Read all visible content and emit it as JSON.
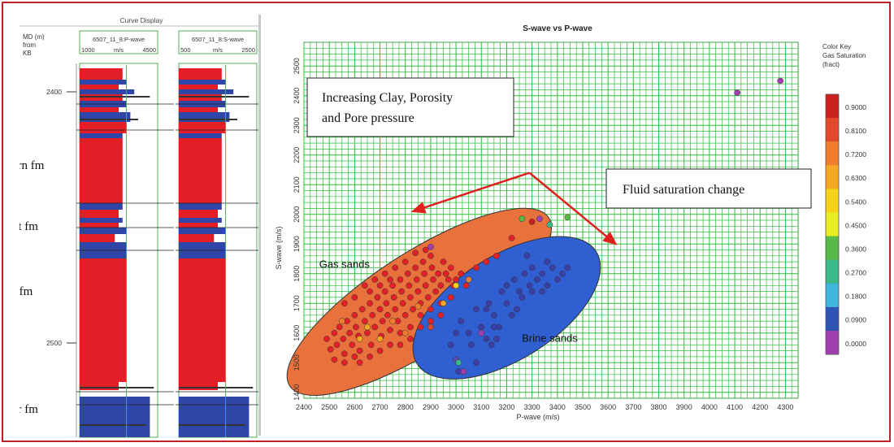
{
  "frame_color": "#c0202a",
  "well_panel": {
    "title": "Curve Display",
    "depth_header": [
      "MD (m)",
      "from",
      "KB"
    ],
    "depth_ticks": [
      "2400",
      "2500"
    ],
    "tracks": [
      {
        "name": "6507_11_8:P-wave",
        "min": "1000",
        "unit": "m/s",
        "max": "4500"
      },
      {
        "name": "6507_11_8:S-wave",
        "min": "500",
        "unit": "m/s",
        "max": "2500"
      }
    ],
    "formations": [
      "Garn fm",
      "Not fm",
      "Ile fm",
      "Ror fm"
    ],
    "colors": {
      "high": "#e41e26",
      "low": "#2f45a8",
      "track_border": "#4caf50"
    }
  },
  "chart_data": {
    "type": "scatter",
    "title": "S-wave vs P-wave",
    "xlabel": "P-wave (m/s)",
    "ylabel": "S-wave (m/s)",
    "xlim": [
      2400,
      4350
    ],
    "ylim": [
      1380,
      2580
    ],
    "xticks": [
      2400,
      2500,
      2600,
      2700,
      2800,
      2900,
      3000,
      3100,
      3200,
      3300,
      3400,
      3500,
      3600,
      3700,
      3800,
      3900,
      4000,
      4100,
      4200,
      4300
    ],
    "yticks": [
      1400,
      1500,
      1600,
      1700,
      1800,
      1900,
      2000,
      2100,
      2200,
      2300,
      2400,
      2500
    ],
    "grid": true,
    "grid_color": "#2fbf3a",
    "color_key": {
      "title": [
        "Color Key",
        "Gas Saturation",
        "(fract)"
      ],
      "labels": [
        "0.9000",
        "0.8100",
        "0.7200",
        "0.6300",
        "0.5400",
        "0.4500",
        "0.3600",
        "0.2700",
        "0.1800",
        "0.0900",
        "0.0000"
      ],
      "colors": [
        "#cc1f1f",
        "#e2492a",
        "#ef7d2d",
        "#f5a623",
        "#f4d21a",
        "#e9ee24",
        "#57b947",
        "#3ab88a",
        "#3fb6e0",
        "#2f52b5",
        "#a23fb0"
      ]
    },
    "groups": [
      {
        "name": "Gas sands",
        "ellipse_color": "#e8713c",
        "point_color": "#e32028",
        "points": [
          [
            2490,
            1580
          ],
          [
            2505,
            1545
          ],
          [
            2520,
            1600
          ],
          [
            2530,
            1560
          ],
          [
            2540,
            1620
          ],
          [
            2555,
            1580
          ],
          [
            2560,
            1530
          ],
          [
            2570,
            1640
          ],
          [
            2580,
            1600
          ],
          [
            2590,
            1560
          ],
          [
            2600,
            1660
          ],
          [
            2605,
            1620
          ],
          [
            2615,
            1590
          ],
          [
            2620,
            1540
          ],
          [
            2630,
            1680
          ],
          [
            2640,
            1640
          ],
          [
            2650,
            1600
          ],
          [
            2660,
            1700
          ],
          [
            2665,
            1560
          ],
          [
            2670,
            1660
          ],
          [
            2680,
            1620
          ],
          [
            2690,
            1720
          ],
          [
            2700,
            1680
          ],
          [
            2705,
            1590
          ],
          [
            2710,
            1640
          ],
          [
            2720,
            1740
          ],
          [
            2725,
            1700
          ],
          [
            2730,
            1660
          ],
          [
            2740,
            1610
          ],
          [
            2750,
            1760
          ],
          [
            2755,
            1720
          ],
          [
            2760,
            1680
          ],
          [
            2770,
            1640
          ],
          [
            2780,
            1780
          ],
          [
            2785,
            1740
          ],
          [
            2790,
            1700
          ],
          [
            2800,
            1660
          ],
          [
            2810,
            1800
          ],
          [
            2815,
            1760
          ],
          [
            2820,
            1720
          ],
          [
            2830,
            1680
          ],
          [
            2840,
            1820
          ],
          [
            2845,
            1780
          ],
          [
            2850,
            1740
          ],
          [
            2860,
            1700
          ],
          [
            2870,
            1840
          ],
          [
            2875,
            1800
          ],
          [
            2880,
            1760
          ],
          [
            2890,
            1720
          ],
          [
            2900,
            1860
          ],
          [
            2905,
            1820
          ],
          [
            2910,
            1780
          ],
          [
            2920,
            1740
          ],
          [
            2930,
            1800
          ],
          [
            2940,
            1760
          ],
          [
            2950,
            1840
          ],
          [
            2960,
            1800
          ],
          [
            2970,
            1780
          ],
          [
            2980,
            1820
          ],
          [
            2990,
            1760
          ],
          [
            3000,
            1780
          ],
          [
            3020,
            1800
          ],
          [
            3040,
            1760
          ],
          [
            3080,
            1820
          ],
          [
            3120,
            1840
          ],
          [
            3160,
            1860
          ],
          [
            3220,
            1920
          ],
          [
            2560,
            1700
          ],
          [
            2600,
            1720
          ],
          [
            2640,
            1760
          ],
          [
            2680,
            1780
          ],
          [
            2720,
            1800
          ],
          [
            2760,
            1820
          ],
          [
            2800,
            1840
          ],
          [
            2840,
            1870
          ],
          [
            2880,
            1880
          ],
          [
            2620,
            1500
          ],
          [
            2660,
            1520
          ],
          [
            2700,
            1540
          ],
          [
            2740,
            1560
          ],
          [
            2780,
            1600
          ],
          [
            2820,
            1620
          ],
          [
            2860,
            1660
          ],
          [
            2900,
            1680
          ],
          [
            2940,
            1700
          ],
          [
            2980,
            1720
          ],
          [
            2520,
            1510
          ],
          [
            2560,
            1500
          ],
          [
            2600,
            1520
          ],
          [
            2780,
            1560
          ],
          [
            2820,
            1580
          ],
          [
            2860,
            1620
          ],
          [
            2900,
            1640
          ],
          [
            2940,
            1660
          ],
          [
            2700,
            1760
          ],
          [
            2740,
            1780
          ],
          [
            2660,
            1740
          ]
        ],
        "accent_points": [
          [
            2750,
            1640,
            "#ef7d2d"
          ],
          [
            2800,
            1600,
            "#ef7d2d"
          ],
          [
            2700,
            1580,
            "#f5a623"
          ],
          [
            2850,
            1690,
            "#ef7d2d"
          ],
          [
            2950,
            1700,
            "#f5a623"
          ],
          [
            3000,
            1760,
            "#f4d21a"
          ],
          [
            3050,
            1780,
            "#ef7d2d"
          ],
          [
            2650,
            1620,
            "#f5a623"
          ],
          [
            2900,
            1620,
            "#e2492a"
          ],
          [
            2550,
            1640,
            "#ef7d2d"
          ],
          [
            2620,
            1580,
            "#f5a623"
          ]
        ]
      },
      {
        "name": "Brine sands",
        "ellipse_color": "#2f5fd0",
        "point_color": "#3a3fa8",
        "points": [
          [
            3020,
            1640
          ],
          [
            3050,
            1600
          ],
          [
            3080,
            1680
          ],
          [
            3100,
            1620
          ],
          [
            3120,
            1580
          ],
          [
            3130,
            1700
          ],
          [
            3150,
            1660
          ],
          [
            3170,
            1620
          ],
          [
            3180,
            1740
          ],
          [
            3200,
            1700
          ],
          [
            3220,
            1660
          ],
          [
            3230,
            1780
          ],
          [
            3250,
            1740
          ],
          [
            3270,
            1800
          ],
          [
            3290,
            1760
          ],
          [
            3300,
            1820
          ],
          [
            3320,
            1780
          ],
          [
            3340,
            1800
          ],
          [
            3360,
            1760
          ],
          [
            3380,
            1820
          ],
          [
            3400,
            1780
          ],
          [
            3420,
            1800
          ],
          [
            3440,
            1820
          ],
          [
            3300,
            1740
          ],
          [
            3340,
            1740
          ],
          [
            3260,
            1720
          ],
          [
            3060,
            1560
          ],
          [
            3140,
            1560
          ],
          [
            3000,
            1600
          ],
          [
            2980,
            1560
          ],
          [
            3150,
            1620
          ],
          [
            3200,
            1760
          ],
          [
            3280,
            1860
          ],
          [
            3360,
            1840
          ],
          [
            3240,
            1680
          ],
          [
            3120,
            1680
          ],
          [
            3080,
            1500
          ],
          [
            3160,
            1580
          ],
          [
            3010,
            1470
          ]
        ],
        "accent_points": [
          [
            3000,
            1510,
            "#5a4bb0"
          ],
          [
            3030,
            1470,
            "#a23fb0"
          ],
          [
            3100,
            1600,
            "#a23fb0"
          ],
          [
            3010,
            1500,
            "#3ab88a"
          ]
        ]
      }
    ],
    "outliers": [
      [
        4110,
        2410,
        "#a23fb0"
      ],
      [
        4280,
        2450,
        "#a23fb0"
      ],
      [
        3260,
        1985,
        "#57b947"
      ],
      [
        3300,
        1975,
        "#cc1f1f"
      ],
      [
        3330,
        1985,
        "#a23fb0"
      ],
      [
        3370,
        1965,
        "#3ab88a"
      ],
      [
        3440,
        1990,
        "#57b947"
      ],
      [
        2900,
        1890,
        "#a23fb0"
      ]
    ],
    "annotations": {
      "trend_up": [
        "Increasing Clay, Porosity",
        "and Pore pressure"
      ],
      "trend_right": "Fluid saturation change",
      "arrow_color": "#e02020"
    }
  }
}
